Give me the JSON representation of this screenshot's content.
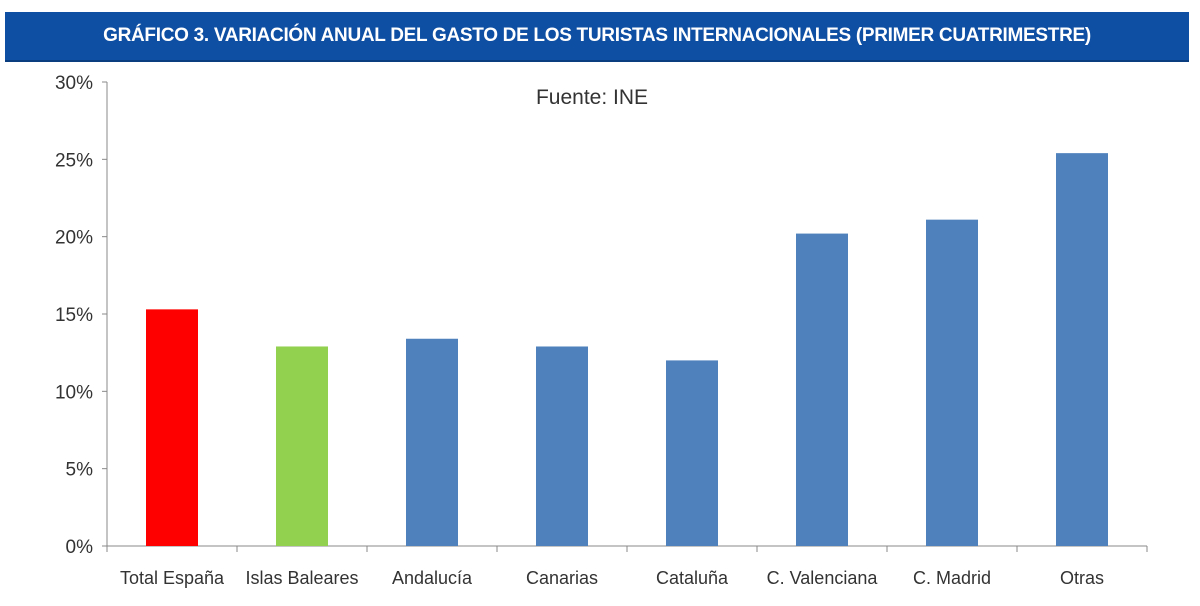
{
  "chart_data": {
    "type": "bar",
    "title": "GRÁFICO 3.  VARIACIÓN ANUAL DEL GASTO DE LOS TURISTAS INTERNACIONALES (PRIMER CUATRIMESTRE)",
    "subtitle": "Fuente: INE",
    "xlabel": "",
    "ylabel": "",
    "ylim": [
      0,
      30
    ],
    "yticks": [
      0,
      5,
      10,
      15,
      20,
      25,
      30
    ],
    "ytick_labels": [
      "0%",
      "5%",
      "10%",
      "15%",
      "20%",
      "25%",
      "30%"
    ],
    "categories": [
      "Total España",
      "Islas Baleares",
      "Andalucía",
      "Canarias",
      "Cataluña",
      "C. Valenciana",
      "C. Madrid",
      "Otras"
    ],
    "values": [
      15.3,
      12.9,
      13.4,
      12.9,
      12.0,
      20.2,
      21.1,
      25.4
    ],
    "colors": [
      "#ff0000",
      "#92d050",
      "#4f81bd",
      "#4f81bd",
      "#4f81bd",
      "#4f81bd",
      "#4f81bd",
      "#4f81bd"
    ],
    "grid": false
  }
}
